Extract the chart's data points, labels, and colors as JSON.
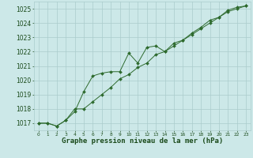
{
  "line1_x": [
    0,
    1,
    2,
    3,
    4,
    5,
    6,
    7,
    8,
    9,
    10,
    11,
    12,
    13,
    14,
    15,
    16,
    17,
    18,
    19,
    20,
    21,
    22,
    23
  ],
  "line1_y": [
    1017.0,
    1017.0,
    1016.8,
    1017.2,
    1017.8,
    1019.2,
    1020.3,
    1020.5,
    1020.6,
    1020.6,
    1021.9,
    1021.2,
    1022.3,
    1022.4,
    1022.0,
    1022.6,
    1022.8,
    1023.3,
    1023.7,
    1024.2,
    1024.4,
    1024.9,
    1025.1,
    1025.2
  ],
  "line2_x": [
    0,
    1,
    2,
    3,
    4,
    5,
    6,
    7,
    8,
    9,
    10,
    11,
    12,
    13,
    14,
    15,
    16,
    17,
    18,
    19,
    20,
    21,
    22,
    23
  ],
  "line2_y": [
    1017.0,
    1017.0,
    1016.8,
    1017.2,
    1018.0,
    1018.0,
    1018.5,
    1019.0,
    1019.5,
    1020.1,
    1020.4,
    1020.9,
    1021.2,
    1021.8,
    1022.0,
    1022.4,
    1022.8,
    1023.2,
    1023.6,
    1024.0,
    1024.4,
    1024.8,
    1025.0,
    1025.2
  ],
  "line_color": "#2d6a2d",
  "marker_color": "#2d6a2d",
  "bg_color": "#cce8e8",
  "grid_color": "#aacccc",
  "xlabel": "Graphe pression niveau de la mer (hPa)",
  "xlabel_color": "#1a4a1a",
  "tick_color": "#1a4a1a",
  "ylim": [
    1016.5,
    1025.5
  ],
  "xlim": [
    -0.5,
    23.5
  ],
  "yticks": [
    1017,
    1018,
    1019,
    1020,
    1021,
    1022,
    1023,
    1024,
    1025
  ],
  "xticks": [
    0,
    1,
    2,
    3,
    4,
    5,
    6,
    7,
    8,
    9,
    10,
    11,
    12,
    13,
    14,
    15,
    16,
    17,
    18,
    19,
    20,
    21,
    22,
    23
  ],
  "xlabel_fontsize": 6.5,
  "ytick_fontsize": 5.5,
  "xtick_fontsize": 4.2
}
